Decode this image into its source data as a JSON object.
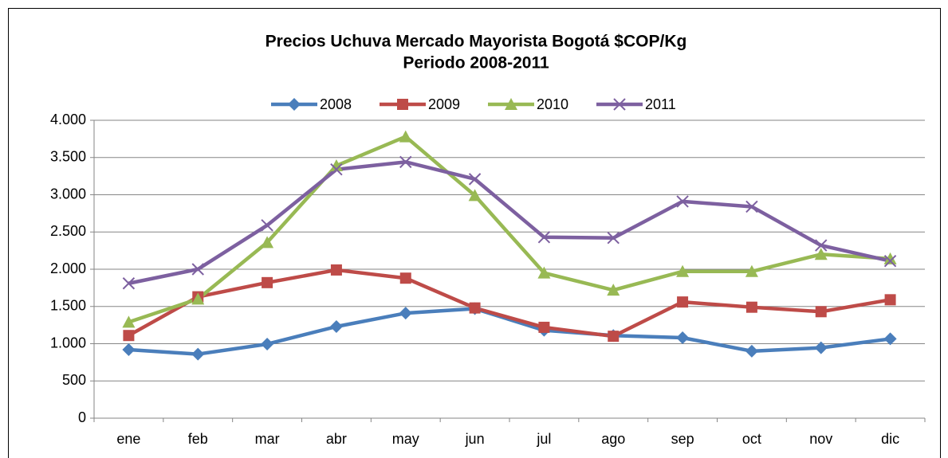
{
  "chart_data": {
    "type": "line",
    "title": "Precios Uchuva Mercado Mayorista Bogotá $COP/Kg",
    "subtitle": "Periodo 2008-2011",
    "categories": [
      "ene",
      "feb",
      "mar",
      "abr",
      "may",
      "jun",
      "jul",
      "ago",
      "sep",
      "oct",
      "nov",
      "dic"
    ],
    "series": [
      {
        "name": "2008",
        "color": "#4a7ebb",
        "marker": "diamond",
        "values": [
          920,
          860,
          995,
          1230,
          1410,
          1470,
          1180,
          1110,
          1080,
          900,
          945,
          1065
        ]
      },
      {
        "name": "2009",
        "color": "#be4b48",
        "marker": "square",
        "values": [
          1110,
          1630,
          1820,
          1990,
          1880,
          1480,
          1220,
          1100,
          1560,
          1490,
          1430,
          1590
        ]
      },
      {
        "name": "2010",
        "color": "#98b954",
        "marker": "triangle",
        "values": [
          1290,
          1600,
          2360,
          3390,
          3780,
          2990,
          1950,
          1720,
          1970,
          1970,
          2200,
          2140
        ]
      },
      {
        "name": "2011",
        "color": "#7d60a0",
        "marker": "x",
        "values": [
          1810,
          2000,
          2590,
          3340,
          3440,
          3210,
          2430,
          2420,
          2910,
          2840,
          2320,
          2110
        ]
      }
    ],
    "ylim": [
      0,
      4000
    ],
    "yticks": [
      0,
      500,
      {
        "value": 1000,
        "label": "1.000"
      },
      {
        "value": 1500,
        "label": "1.500"
      },
      {
        "value": 2000,
        "label": "2.000"
      },
      {
        "value": 2500,
        "label": "2.500"
      },
      {
        "value": 3000,
        "label": "3.000"
      },
      {
        "value": 3500,
        "label": "3.500"
      },
      {
        "value": 4000,
        "label": "4.000"
      }
    ],
    "grid": true,
    "legend": "top"
  }
}
